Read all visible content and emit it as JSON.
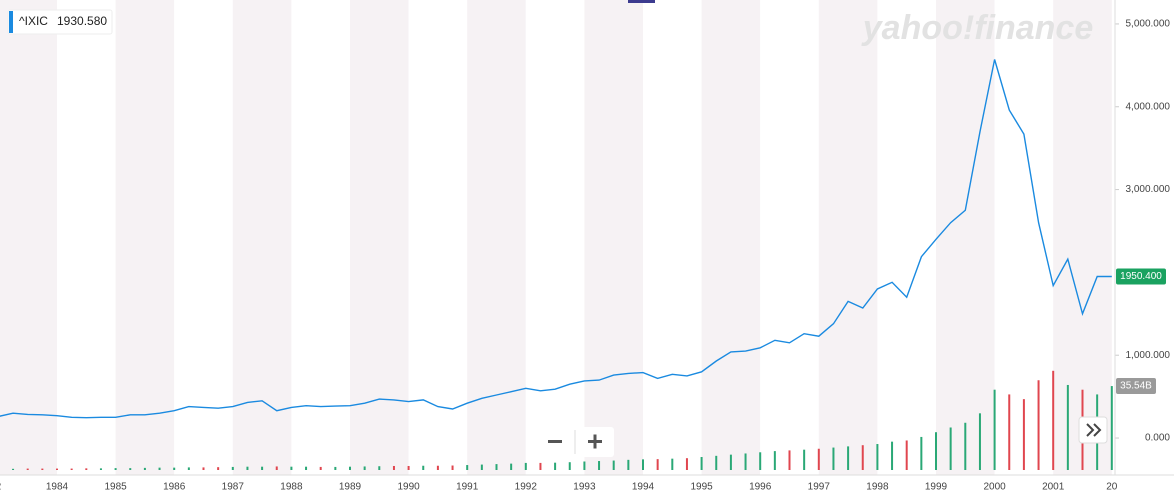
{
  "chart_data": {
    "type": "line",
    "watermark": "yahoo!finance",
    "legend": {
      "symbol": "^IXIC",
      "price": {
        "value": 1930.58,
        "label": "1930.580"
      }
    },
    "categories": [
      "2",
      null,
      null,
      null,
      "1984",
      null,
      null,
      null,
      "1985",
      null,
      null,
      null,
      "1986",
      null,
      null,
      null,
      "1987",
      null,
      null,
      null,
      "1988",
      null,
      null,
      null,
      "1989",
      null,
      null,
      null,
      "1990",
      null,
      null,
      null,
      "1991",
      null,
      null,
      null,
      "1992",
      null,
      null,
      null,
      "1993",
      null,
      null,
      null,
      "1994",
      null,
      null,
      null,
      "1995",
      null,
      null,
      null,
      "1996",
      null,
      null,
      null,
      "1997",
      null,
      null,
      null,
      "1998",
      null,
      null,
      null,
      "1999",
      null,
      null,
      null,
      "2000",
      null,
      null,
      null,
      "2001",
      null,
      null,
      null,
      "20"
    ],
    "series": [
      {
        "name": "^IXIC",
        "color": "#1a8ae0",
        "values": [
          260,
          300,
          285,
          280,
          270,
          250,
          245,
          250,
          250,
          280,
          280,
          300,
          330,
          380,
          370,
          360,
          380,
          430,
          450,
          330,
          370,
          390,
          380,
          385,
          390,
          420,
          470,
          460,
          440,
          460,
          380,
          350,
          420,
          480,
          520,
          560,
          600,
          570,
          590,
          650,
          690,
          700,
          760,
          780,
          790,
          720,
          770,
          750,
          800,
          930,
          1040,
          1050,
          1090,
          1180,
          1150,
          1260,
          1230,
          1380,
          1650,
          1570,
          1800,
          1880,
          1700,
          2190,
          2400,
          2600,
          2750,
          3700,
          4570,
          3960,
          3670,
          2600,
          1840,
          2160,
          1500,
          1950,
          1950.4
        ]
      }
    ],
    "volume": {
      "values": [
        0.5,
        0.5,
        0.6,
        0.6,
        0.6,
        0.6,
        0.7,
        0.7,
        0.8,
        0.8,
        0.9,
        1,
        1,
        1.1,
        1.1,
        1.2,
        1.3,
        1.4,
        1.4,
        1.5,
        1.4,
        1.4,
        1.3,
        1.3,
        1.4,
        1.5,
        1.6,
        1.7,
        1.7,
        1.8,
        1.8,
        1.9,
        2.1,
        2.3,
        2.5,
        2.7,
        3,
        3,
        3.1,
        3.3,
        3.6,
        3.8,
        4,
        4.3,
        4.5,
        4.6,
        4.8,
        5,
        5.5,
        6,
        6.5,
        7,
        7.5,
        8,
        8.3,
        8.6,
        9,
        9.5,
        10,
        10.5,
        11,
        12,
        12.5,
        14,
        16,
        18,
        20,
        24,
        34,
        32,
        30,
        38,
        42,
        36,
        34,
        32,
        35.54
      ],
      "ylim": [
        0,
        199
      ],
      "current": {
        "value": 35.54,
        "label": "35.54B"
      }
    },
    "ylim": [
      -386,
      5289
    ],
    "yticks": [
      {
        "value": 0,
        "label": "0.000"
      },
      {
        "value": 1000,
        "label": "1,000.000"
      },
      {
        "value": 3000,
        "label": "3,000.000"
      },
      {
        "value": 4000,
        "label": "4,000.000"
      },
      {
        "value": 5000,
        "label": "5,000.000"
      }
    ],
    "current": {
      "value": 1950.4,
      "label": "1950.400"
    },
    "up_color": "#2aa876",
    "down_color": "#e0464f"
  }
}
